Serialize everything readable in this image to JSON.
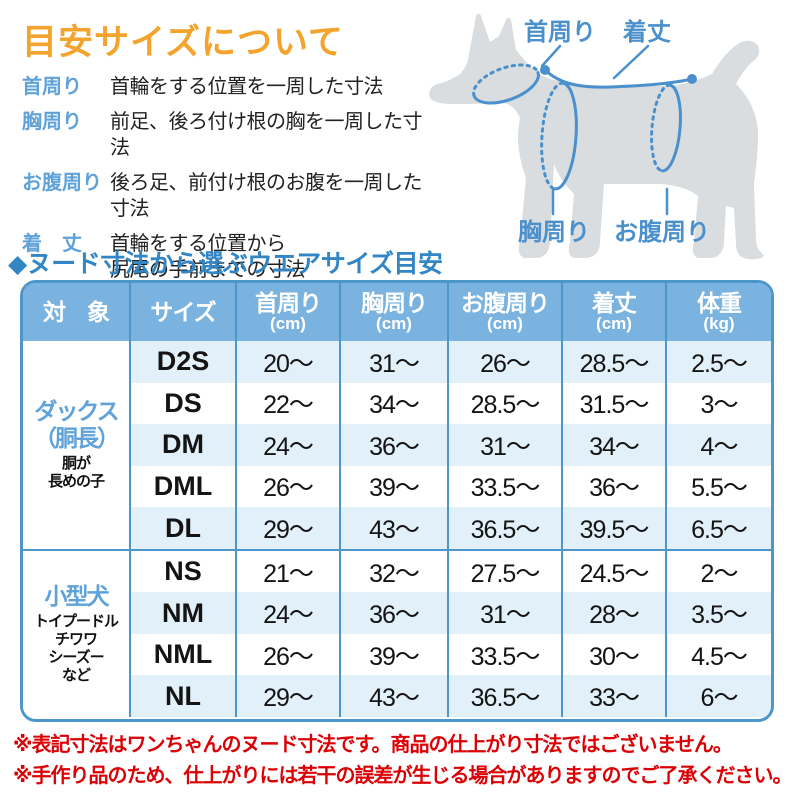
{
  "title": "目安サイズについて",
  "legend": {
    "items": [
      {
        "term": "首周り",
        "desc": "首輪をする位置を一周した寸法"
      },
      {
        "term": "胸周り",
        "desc": "前足、後ろ付け根の胸を一周した寸法"
      },
      {
        "term": "お腹周り",
        "desc": "後ろ足、前付け根のお腹を一周した寸法"
      },
      {
        "term": "着　丈",
        "desc": "首輪をする位置から\n尻尾の手前までの寸法"
      }
    ]
  },
  "diagram": {
    "labels": {
      "neck": "首周り",
      "length": "着丈",
      "chest": "胸周り",
      "belly": "お腹周り"
    }
  },
  "section_title": "◆ヌード寸法から選ぶウエアサイズ目安",
  "table": {
    "headers": [
      {
        "label": "対　象",
        "unit": ""
      },
      {
        "label": "サイズ",
        "unit": ""
      },
      {
        "label": "首周り",
        "unit": "(cm)"
      },
      {
        "label": "胸周り",
        "unit": "(cm)"
      },
      {
        "label": "お腹周り",
        "unit": "(cm)"
      },
      {
        "label": "着丈",
        "unit": "(cm)"
      },
      {
        "label": "体重",
        "unit": "(kg)"
      }
    ],
    "groups": [
      {
        "name_lines": "ダックス\n（胴長）",
        "sub_lines": "胴が\n長めの子",
        "rows": [
          [
            "D2S",
            "20〜",
            "31〜",
            "26〜",
            "28.5〜",
            "2.5〜"
          ],
          [
            "DS",
            "22〜",
            "34〜",
            "28.5〜",
            "31.5〜",
            "3〜"
          ],
          [
            "DM",
            "24〜",
            "36〜",
            "31〜",
            "34〜",
            "4〜"
          ],
          [
            "DML",
            "26〜",
            "39〜",
            "33.5〜",
            "36〜",
            "5.5〜"
          ],
          [
            "DL",
            "29〜",
            "43〜",
            "36.5〜",
            "39.5〜",
            "6.5〜"
          ]
        ]
      },
      {
        "name_lines": "小型犬",
        "sub_lines": "トイプードル\nチワワ\nシーズー\nなど",
        "rows": [
          [
            "NS",
            "21〜",
            "32〜",
            "27.5〜",
            "24.5〜",
            "2〜"
          ],
          [
            "NM",
            "24〜",
            "36〜",
            "31〜",
            "28〜",
            "3.5〜"
          ],
          [
            "NML",
            "26〜",
            "39〜",
            "33.5〜",
            "30〜",
            "4.5〜"
          ],
          [
            "NL",
            "29〜",
            "43〜",
            "36.5〜",
            "33〜",
            "6〜"
          ]
        ]
      }
    ]
  },
  "notes": [
    "※表記寸法はワンちゃんのヌード寸法です。商品の仕上がり寸法ではございません。",
    "※手作り品のため、仕上がりには若干の誤差が生じる場合がありますのでご了承ください。"
  ],
  "colors": {
    "accent_orange": "#F4A42C",
    "label_blue": "#5FA2D9",
    "heading_blue": "#3386C5",
    "diagram_line_blue": "#4A90CC",
    "table_border_blue": "#4D96C9",
    "table_header_bg": "#7AB3E0",
    "row_stripe_blue": "#E2F0FA",
    "note_red": "#DC0005",
    "dog_silhouette_gray": "#D9DDDF"
  }
}
